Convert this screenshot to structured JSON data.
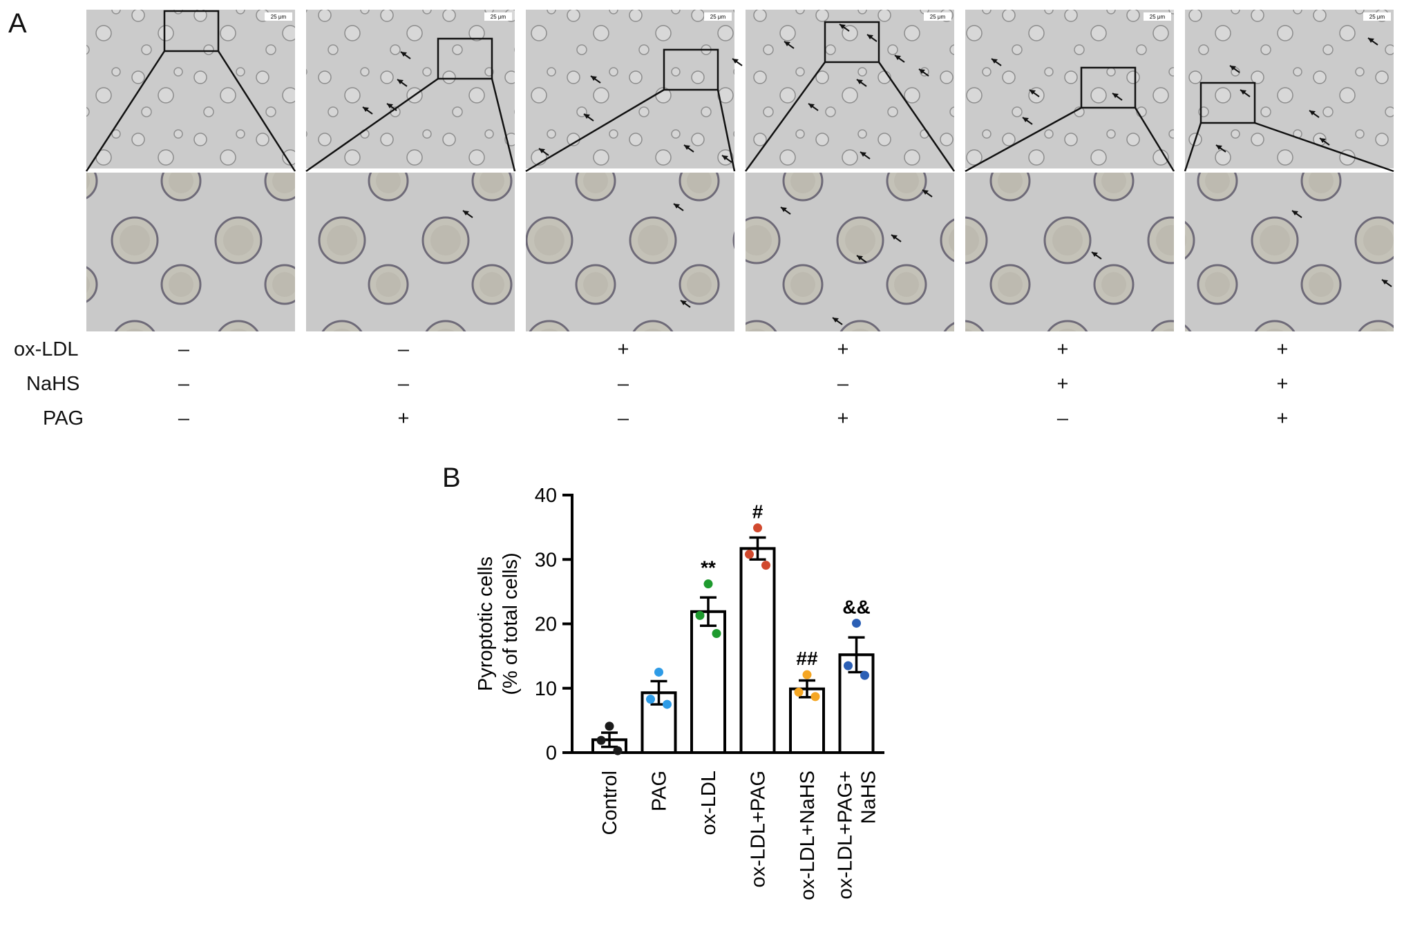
{
  "panel_a": {
    "label": "A",
    "scale_bar_text": "25 μm",
    "treatment_rows": [
      {
        "name": "ox-LDL",
        "signs": [
          "–",
          "–",
          "+",
          "+",
          "+",
          "+"
        ]
      },
      {
        "name": "NaHS",
        "signs": [
          "–",
          "–",
          "–",
          "–",
          "+",
          "+"
        ]
      },
      {
        "name": "PAG",
        "signs": [
          "–",
          "+",
          "–",
          "+",
          "–",
          "+"
        ]
      }
    ]
  },
  "panel_b": {
    "label": "B",
    "chart_data": {
      "type": "bar",
      "title": "",
      "xlabel": "",
      "ylabel": [
        "Pyroptotic cells",
        "(% of total cells)"
      ],
      "ylim": [
        0,
        40
      ],
      "yticks": [
        "0",
        "10",
        "20",
        "30",
        "40"
      ],
      "categories": [
        [
          "Control"
        ],
        [
          "PAG"
        ],
        [
          "ox-LDL"
        ],
        [
          "ox-LDL+PAG"
        ],
        [
          "ox-LDL+NaHS"
        ],
        [
          "ox-LDL+PAG+",
          "NaHS"
        ]
      ],
      "values": [
        2.0,
        9.3,
        21.9,
        31.7,
        9.9,
        15.2
      ],
      "sem": [
        1.1,
        1.8,
        2.2,
        1.7,
        1.3,
        2.7
      ],
      "points": [
        [
          4.1,
          1.9,
          0.3
        ],
        [
          12.5,
          8.3,
          7.5
        ],
        [
          26.2,
          21.3,
          18.5
        ],
        [
          34.9,
          30.8,
          29.1
        ],
        [
          12.1,
          9.4,
          8.7
        ],
        [
          20.1,
          13.5,
          12.0
        ]
      ],
      "point_colors": [
        "#1a1a1a",
        "#2e9be6",
        "#1e9a2e",
        "#d1492e",
        "#f5a623",
        "#2b5fb5"
      ],
      "annotations": [
        "",
        "",
        "**",
        "#",
        "##",
        "&&"
      ]
    }
  }
}
